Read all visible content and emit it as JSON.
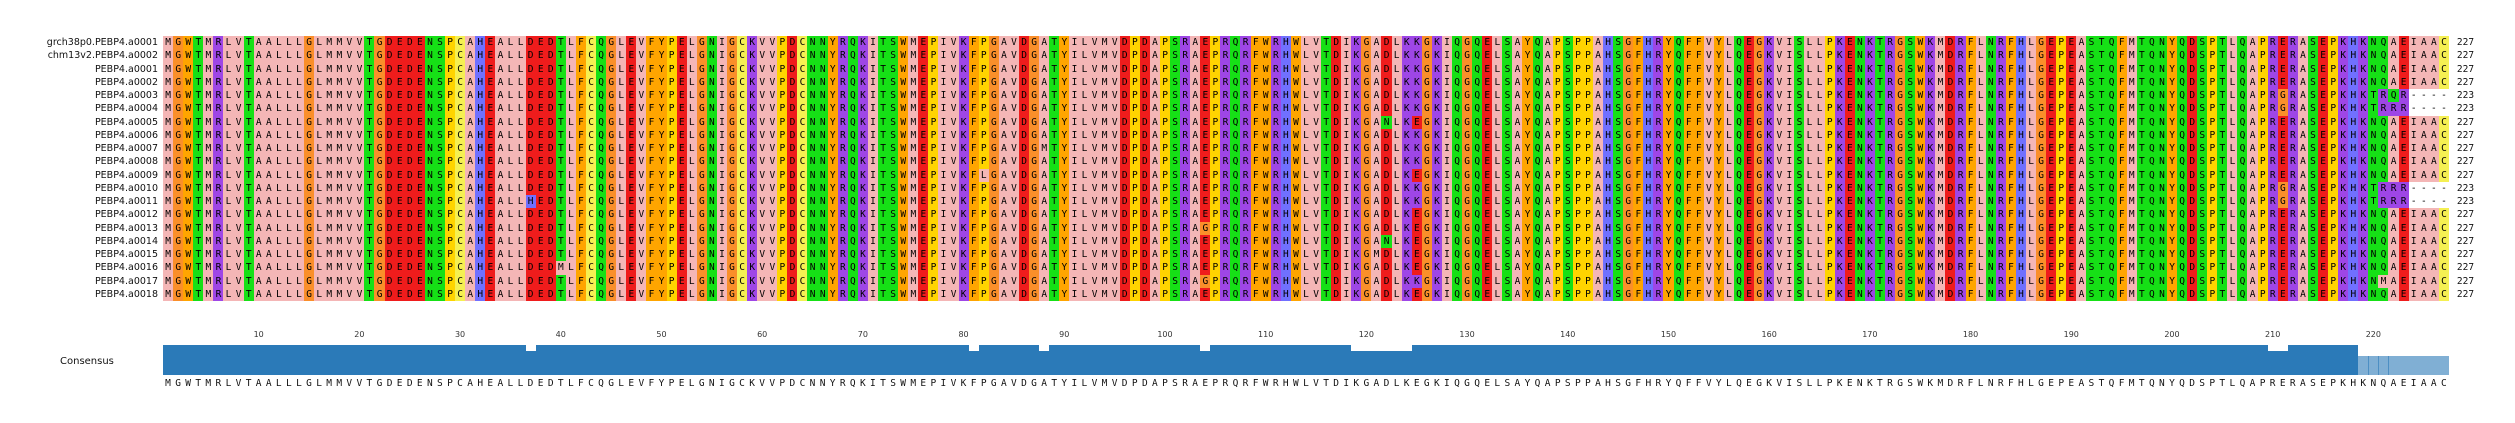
{
  "alignment": {
    "names": [
      "grch38p0.PEBP4.a0001",
      "chm13v2.PEBP4.a0002",
      "PEBP4.a0001",
      "PEBP4.a0002",
      "PEBP4.a0003",
      "PEBP4.a0004",
      "PEBP4.a0005",
      "PEBP4.a0006",
      "PEBP4.a0007",
      "PEBP4.a0008",
      "PEBP4.a0009",
      "PEBP4.a0010",
      "PEBP4.a0011",
      "PEBP4.a0012",
      "PEBP4.a0013",
      "PEBP4.a0014",
      "PEBP4.a0015",
      "PEBP4.a0016",
      "PEBP4.a0017",
      "PEBP4.a0018"
    ],
    "sequences": [
      "MGWTMRLVTAALLLGLMMVVTGDEDENSPCAHEALLDEDTLFCQGLEVFYPELGNIGCKVVPDCNNYRQKITSWMEPIVKFPGAVDGATYILVMVDPDAPSRAEPRQRFWRHWLVTDIKGADLKKGKIQGQELSAYQAPSPPAHSGFHRYQFFVYLQEGKVISLLPKENKTRGSWKMDRFLNRFHLGEPEASTQFMTQNYQDSPTLQAPRERASEPKHKNQAEIAAC",
      "MGWTMRLVTAALLLGLMMVVTGDEDENSPCAHEALLDEDTLFCQGLEVFYPELGNIGCKVVPDCNNYRQKITSWMEPIVKFPGAVDGATYILVMVDPDAPSRAEPRQRFWRHWLVTDIKGADLKKGKIQGQELSAYQAPSPPAHSGFHRYQFFVYLQEGKVISLLPKENKTRGSWKMDRFLNRFHLGEPEASTQFMTQNYQDSPTLQAPRERASEPKHKNQAEIAAC",
      "MGWTMRLVTAALLLGLMMVVTGDEDENSPCAHEALLDEDTLFCQGLEVFYPELGNIGCKVVPDCNNYRQKITSWMEPIVKFPGAVDGATYILVMVDPDAPSRAEPRQRFWRHWLVTDIKGADLKKGKIQGQELSAYQAPSPPAHSGFHRYQFFVYLQEGKVISLLPKENKTRGSWKMDRFLNRFHLGEPEASTQFMTQNYQDSPTLQAPRERASEPKHKNQAEIAAC",
      "MGWTMRLVTAALLLGLMMVVTGDEDENSPCAHEALLDEDTLFCQGLEVFYPELGNIGCKVVPDCNNYRQKITSWMEPIVKFPGAVDGATYILVMVDPDAPSRAEPRQRFWRHWLVTDIKGADLKKGKIQGQELSAYQAPSPPAHSGFHRYQFFVYLQEGKVISLLPKENKTRGSWKMDRFLNRFHLGEPEASTQFMTQNYQDSPTLQAPRERASEPKHKNQAEIAAC",
      "MGWTMRLVTAALLLGLMMVVTGDEDENSPCAHEALLDEDTLFCQGLEVFYPELGNIGCKVVPDCNNYRQKITSWMEPIVKFPGAVDGATYILVMVDPDAPSRAEPRQRFWRHWLVTDIKGADLKKGKIQGQELSAYQAPSPPAHSGFHRYQFFVYLQEGKVISLLPKENKTRGSWKMDRFLNRFHLGEPEASTQFMTQNYQDSPTLQAPRGRASEPKHKTRQR----",
      "MGWTMRLVTAALLLGLMMVVTGDEDENSPCAHEALLDEDTLFCQGLEVFYPELGNIGCKVVPDCNNYRQKITSWMEPIVKFPGAVDGATYILVMVDPDAPSRAEPRQRFWRHWLVTDIKGADLKKGKIQGQELSAYQAPSPPAHSGFHRYQFFVYLQEGKVISLLPKENKTRGSWKMDRFLNRFHLGEPEASTQFMTQNYQDSPTLQAPRGRASEPKHKTRRR----",
      "MGWTMRLVTAALLLGLMMVVTGDEDENSPCAHEALLDEDTLFCQGLEVFYPELGNIGCKVVPDCNNYRQKITSWMEPIVKFPGAVDGATYILVMVDPDAPSRAEPRQRFWRHWLVTDIKGANLKEGKIQGQELSAYQAPSPPAHSGFHRYQFFVYLQEGKVISLLPKENKTRGSWKMDRFLNRFHLGEPEASTQFMTQNYQDSPTLQAPRERASEPKHKNQAEIAAC",
      "MGWTMRLVTAALLLGLMMVVTGDEDENSPCAHEALLDEDTLFCQGLEVFYPELGNIGCKVVPDCNNYRQKITSWMEPIVKFPGAVDGATYILVMVDPDAPSRAEPRQRFWRHWLVTDIKGADLKKGKIQGQELSAYQAPSPPAHSGFHRYQFFVYLQEGKVISLLPKENKTRGSWKMDRFLNRFHLGEPEASTQFMTQNYQDSPTLQAPRERASEPKHKNQAEIAAC",
      "MGWTMRLVTAALLLGLMMVVTGDEDENSPCAHEALLDEDTLFCQGLEVFYPELGNIGCKVVPDCNNYRQKITSWMEPIVKFPGAVDGMTYILVMVDPDAPSRAEPRQRFWRHWLVTDIKGADLKKGKIQGQELSAYQAPSPPAHSGFHRYQFFVYLQEGKVISLLPKENKTRGSWKMDRFLNRFHLGEPEASTQFMTQNYQDSPTLQAPRERASEPKHKNQAEIAAC",
      "MGWTMRLVTAALLLGLMMVVTGDEDENSPCAHEALLDEDTLFCQGLEVFYPELGNIGCKVVPDCNNYRQKITSWMEPIVKFPGAVDGATYILVMVDPDAPSRAEPRQRFWRHWLVTDIKGADLKKGKIQGQELSAYQAPSPPAHSGFHRYQFFVYLQEGKVISLLPKENKTRGSWKMDRFLNRFHLGEPEASTQFMTQNYQDSPTLQAPRERASEPKHKNQAEIAAC",
      "MGWTMRLVTAALLLGLMMVVTGDEDENSPCAHEALLDEDTLFCQGLEVFYPELGNIGCKVVPDCNNYRQKITSWMEPIVKFLGAVDGATYILVMVDPDAPSRAEPRQRFWRHWLVTDIKGADLKEGKIQGQELSAYQAPSPPAHSGFHRYQFFVYLQEGKVISLLPKENKTRGSWKMDRFLNRFHLGEPEASTQFMTQNYQDSPTLQAPRERASEPKHKNQAEIAAC",
      "MGWTMRLVTAALLLGLMMVVTGDEDENSPCAHEALLDEDTLFCQGLEVFYPELGNIGCKVVPDCNNYRQKITSWMEPIVKFPGAVDGATYILVMVDPDAPSRAEPRQRFWRHWLVTDIKGADLKKGKIQGQELSAYQAPSPPAHSGFHRYQFFVYLQEGKVISLLPKENKTRGSWKMDRFLNRFHLGEPEASTQFMTQNYQDSPTLQAPRGRASEPKHKTRRR----",
      "MGWTMRLVTAALLLGLMMVVTGDEDENSPCAHEALLHEDTLFCQGLEVFYPELGNIGCKVVPDCNNYRQKITSWMEPIVKFPGAVDGATYILVMVDPDAPSRAEPRQRFWRHWLVTDIKGADLKKGKIQGQELSAYQAPSPPAHSGFHRYQFFVYLQEGKVISLLPKENKTRGSWKMDRFLNRFHLGEPEASTQFMTQNYQDSPTLQAPRGRASEPKHKTRRR----",
      "MGWTMRLVTAALLLGLMMVVTGDEDENSPCAHEALLDEDTLFCQGLEVFYPELGNIGCKVVPDCNNYRQKITSWMEPIVKFPGAVDGATYILVMVDPDAPSRAEPRQRFWRHWLVTDIKGADLKEGKIQGQELSAYQAPSPPAHSGFHRYQFFVYLQEGKVISLLPKENKTRGSWKMDRFLNRFHLGEPEASTQFMTQNYQDSPTLQAPRERASEPKHKNQAEIAAC",
      "MGWTMRLVTAALLLGLMMVVTGDEDENSPCAHEALLDEDTLFCQGLEVFYPELGNIGCKVVPDCNNYRQKITSWMEPIVKFPGAVDGATYILVMVDPDAPSRAGPRQRFWRHWLVTDIKGADLKEGKIQGQELSAYQAPSPPAHSGFHRYQFFVYLQEGKVISLLPKENKTRGSWKMDRFLNRFHLGEPEASTQFMTQNYQDSPTLQAPRERASEPKHKNQAEIAAC",
      "MGWTMRLVTAALLLGLMMVVTGDEDENSPCAHEALLDEDTLFCQGLEVFYPELGNIGCKVVPDCNNYRQKITSWMEPIVKFPGAVDGATYILVMVDPDAPSRAEPRQRFWRHWLVTDIKGANLKEGKIQGQELSAYQAPSPPAHSGFHRYQFFVYLQEGKVISLLPKENKTRGSWKMDRFLNRFHLGEPEASTQFMTQNYQDSPTLQAPRERASEPKHKNQAEIAAC",
      "MGWTMRLVTAALLLGLMMVVTGDEDENSPCAHEALLDEDTLFCQGLEVFYPELGNIGCKVVPDCNNYRQKITSWMEPIVKFPGAVDGATYILVMVDPDAPSRAEPRQRFWRHWLVTDIKGMDLKEGKIQGQELSAYQAPSPPAHSGFHRYQFFVYLQEGKVISLLPKENKTRGSWKMDRFLNRFHLGEPEASTQFMTQNYQDSPTLQAPRERASEPKHKNQAEIAAC",
      "MGWTMRLVTAALLLGLMMVVTGDEDENSPCAHEALLDEDMLFCQGLEVFYPELGNIGCKVVPDCNNYRQKITSWMEPIVKFPGAVDGATYILVMVDPDAPSRAEPRQRFWRHWLVTDIKGADLKEGKIQGQELSAYQAPSPPAHSGFHRYQFFVYLQEGKVISLLPKENKTRGSWKMDRFLNRFHLGEPEASTQFMTQNYQDSPTLQAPRERASEPKHKNQAEIAAC",
      "MGWTMRLVTAALLLGLMMVVTGDEDENSPCAHEALLDEDTLFCQGLEVFYPELGNIGCKVVPDCNNYRQKITSWMEPIVKFPGAVDGATYILVMVDPDAPSRAGPRQRFWRHWLVTDIKGADLKKGKIQGQELSAYQAPSPPAHSGFHRYQFFVYLQEGKVISLLPKENKTRGSWKMDRFLNRFHLGEPEASTQFMTQNYQDSPTLQAPRERASEPKHKNMAEIAAC",
      "MGWTMRLVTAALLLGLMMVVTGDEDENSPCAHEALLDEDTLFCQGLEVFYPELGNIGCKVVPDCNNYRQKITSWMEPIVKFPGAVDGATYILVMVDPDAPSRAEPRQRFWRHWLVTDIKGADLKEGKIQGQELSAYQAPSPPAHSGFHRYQFFVYLQEGKVISLLPKENKTRGSWKMDRFLNRFHLGEPEASTQFMTQNYQDSPTLQAPRERASEPKHKNQAEIAAC"
    ],
    "lengths": [
      "227",
      "227",
      "227",
      "227",
      "223",
      "223",
      "227",
      "227",
      "227",
      "227",
      "227",
      "223",
      "223",
      "227",
      "227",
      "227",
      "227",
      "227",
      "227",
      "227"
    ],
    "ruler_ticks": [
      "10",
      "20",
      "30",
      "40",
      "50",
      "60",
      "70",
      "80",
      "90",
      "100",
      "110",
      "120",
      "130",
      "140",
      "150",
      "160",
      "170",
      "180",
      "190",
      "200",
      "210",
      "220"
    ],
    "consensus_label": "Consensus",
    "consensus": "MGWTMRLVTAALLLGLMMVVTGDEDENSPCAHEALLDEDTLFCQGLEVFYPELGNIGCKVVPDCNNYRQKITSWMEPIVKFPGAVDGATYILVMVDPDAPSRAEPRQRFWRHWLVTDIKGADLKEGKIQGQELSAYQAPSPPAHSGFHRYQFFVYLQEGKVISLLPKENKTRGSWKMDRFLNRFHLGEPEASTQFMTQNYQDSPTLQAPRERASEPKHKNQAEIAAC",
    "consensus_dips": [
      36,
      80,
      87,
      103,
      118,
      119,
      120,
      121,
      122,
      123,
      209,
      210,
      218,
      219,
      220,
      221,
      222,
      223,
      224,
      225,
      226
    ],
    "colors": {
      "A": "#f4b6b6",
      "V": "#f4b6b6",
      "L": "#f4b6b6",
      "I": "#f4b6b6",
      "M": "#f4b6b6",
      "F": "#ffa500",
      "W": "#ffa500",
      "Y": "#ffa500",
      "K": "#9e46e6",
      "R": "#9e46e6",
      "H": "#7070ff",
      "D": "#ef1c1c",
      "E": "#ef1c1c",
      "S": "#16e016",
      "T": "#16e016",
      "N": "#16e016",
      "Q": "#16e016",
      "G": "#fa8f2a",
      "P": "#ffd400",
      "C": "#f5f052",
      "-": "#ffffff",
      "consensus_bar": "#2b7ab8"
    }
  }
}
